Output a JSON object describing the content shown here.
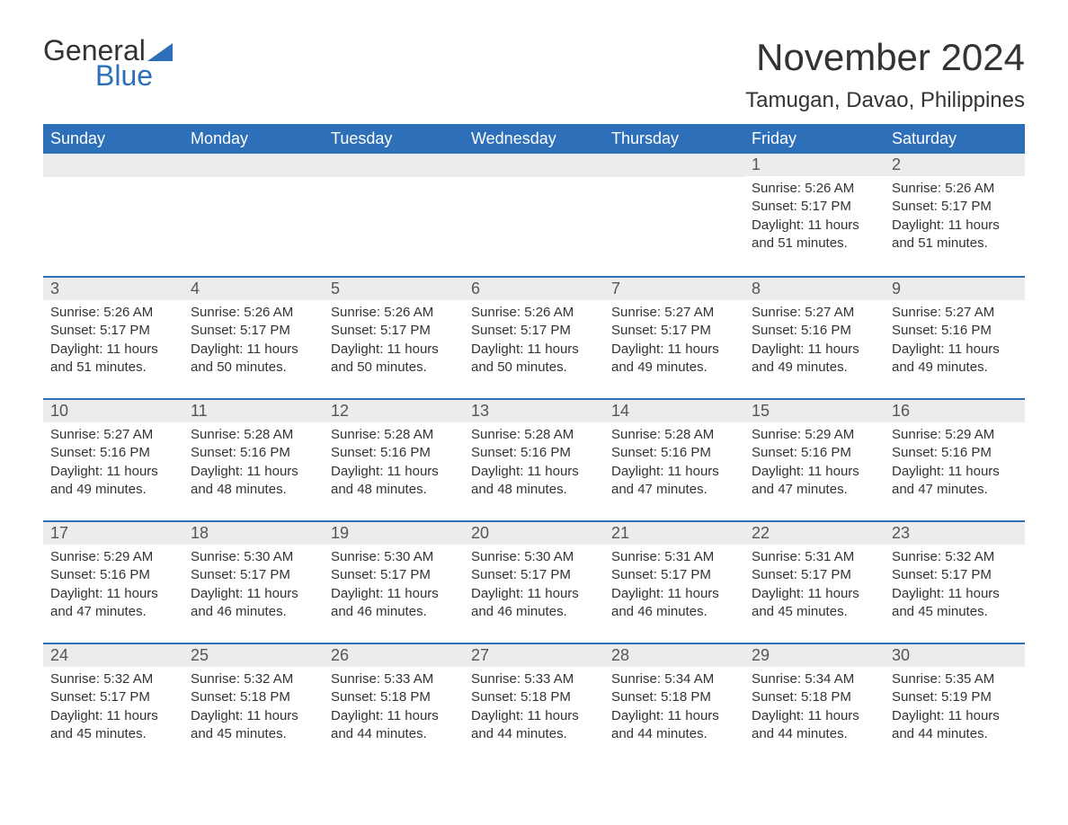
{
  "logo": {
    "text1": "General",
    "text2": "Blue",
    "tri_color": "#2d6fb8"
  },
  "title": "November 2024",
  "location": "Tamugan, Davao, Philippines",
  "colors": {
    "header_bg": "#2d6fb8",
    "header_text": "#ffffff",
    "daynum_bg": "#ececec",
    "row_border": "#2d6fb8",
    "text": "#333333"
  },
  "day_headers": [
    "Sunday",
    "Monday",
    "Tuesday",
    "Wednesday",
    "Thursday",
    "Friday",
    "Saturday"
  ],
  "weeks": [
    [
      null,
      null,
      null,
      null,
      null,
      {
        "n": "1",
        "sunrise": "5:26 AM",
        "sunset": "5:17 PM",
        "daylight": "11 hours and 51 minutes."
      },
      {
        "n": "2",
        "sunrise": "5:26 AM",
        "sunset": "5:17 PM",
        "daylight": "11 hours and 51 minutes."
      }
    ],
    [
      {
        "n": "3",
        "sunrise": "5:26 AM",
        "sunset": "5:17 PM",
        "daylight": "11 hours and 51 minutes."
      },
      {
        "n": "4",
        "sunrise": "5:26 AM",
        "sunset": "5:17 PM",
        "daylight": "11 hours and 50 minutes."
      },
      {
        "n": "5",
        "sunrise": "5:26 AM",
        "sunset": "5:17 PM",
        "daylight": "11 hours and 50 minutes."
      },
      {
        "n": "6",
        "sunrise": "5:26 AM",
        "sunset": "5:17 PM",
        "daylight": "11 hours and 50 minutes."
      },
      {
        "n": "7",
        "sunrise": "5:27 AM",
        "sunset": "5:17 PM",
        "daylight": "11 hours and 49 minutes."
      },
      {
        "n": "8",
        "sunrise": "5:27 AM",
        "sunset": "5:16 PM",
        "daylight": "11 hours and 49 minutes."
      },
      {
        "n": "9",
        "sunrise": "5:27 AM",
        "sunset": "5:16 PM",
        "daylight": "11 hours and 49 minutes."
      }
    ],
    [
      {
        "n": "10",
        "sunrise": "5:27 AM",
        "sunset": "5:16 PM",
        "daylight": "11 hours and 49 minutes."
      },
      {
        "n": "11",
        "sunrise": "5:28 AM",
        "sunset": "5:16 PM",
        "daylight": "11 hours and 48 minutes."
      },
      {
        "n": "12",
        "sunrise": "5:28 AM",
        "sunset": "5:16 PM",
        "daylight": "11 hours and 48 minutes."
      },
      {
        "n": "13",
        "sunrise": "5:28 AM",
        "sunset": "5:16 PM",
        "daylight": "11 hours and 48 minutes."
      },
      {
        "n": "14",
        "sunrise": "5:28 AM",
        "sunset": "5:16 PM",
        "daylight": "11 hours and 47 minutes."
      },
      {
        "n": "15",
        "sunrise": "5:29 AM",
        "sunset": "5:16 PM",
        "daylight": "11 hours and 47 minutes."
      },
      {
        "n": "16",
        "sunrise": "5:29 AM",
        "sunset": "5:16 PM",
        "daylight": "11 hours and 47 minutes."
      }
    ],
    [
      {
        "n": "17",
        "sunrise": "5:29 AM",
        "sunset": "5:16 PM",
        "daylight": "11 hours and 47 minutes."
      },
      {
        "n": "18",
        "sunrise": "5:30 AM",
        "sunset": "5:17 PM",
        "daylight": "11 hours and 46 minutes."
      },
      {
        "n": "19",
        "sunrise": "5:30 AM",
        "sunset": "5:17 PM",
        "daylight": "11 hours and 46 minutes."
      },
      {
        "n": "20",
        "sunrise": "5:30 AM",
        "sunset": "5:17 PM",
        "daylight": "11 hours and 46 minutes."
      },
      {
        "n": "21",
        "sunrise": "5:31 AM",
        "sunset": "5:17 PM",
        "daylight": "11 hours and 46 minutes."
      },
      {
        "n": "22",
        "sunrise": "5:31 AM",
        "sunset": "5:17 PM",
        "daylight": "11 hours and 45 minutes."
      },
      {
        "n": "23",
        "sunrise": "5:32 AM",
        "sunset": "5:17 PM",
        "daylight": "11 hours and 45 minutes."
      }
    ],
    [
      {
        "n": "24",
        "sunrise": "5:32 AM",
        "sunset": "5:17 PM",
        "daylight": "11 hours and 45 minutes."
      },
      {
        "n": "25",
        "sunrise": "5:32 AM",
        "sunset": "5:18 PM",
        "daylight": "11 hours and 45 minutes."
      },
      {
        "n": "26",
        "sunrise": "5:33 AM",
        "sunset": "5:18 PM",
        "daylight": "11 hours and 44 minutes."
      },
      {
        "n": "27",
        "sunrise": "5:33 AM",
        "sunset": "5:18 PM",
        "daylight": "11 hours and 44 minutes."
      },
      {
        "n": "28",
        "sunrise": "5:34 AM",
        "sunset": "5:18 PM",
        "daylight": "11 hours and 44 minutes."
      },
      {
        "n": "29",
        "sunrise": "5:34 AM",
        "sunset": "5:18 PM",
        "daylight": "11 hours and 44 minutes."
      },
      {
        "n": "30",
        "sunrise": "5:35 AM",
        "sunset": "5:19 PM",
        "daylight": "11 hours and 44 minutes."
      }
    ]
  ],
  "labels": {
    "sunrise": "Sunrise: ",
    "sunset": "Sunset: ",
    "daylight": "Daylight: "
  }
}
